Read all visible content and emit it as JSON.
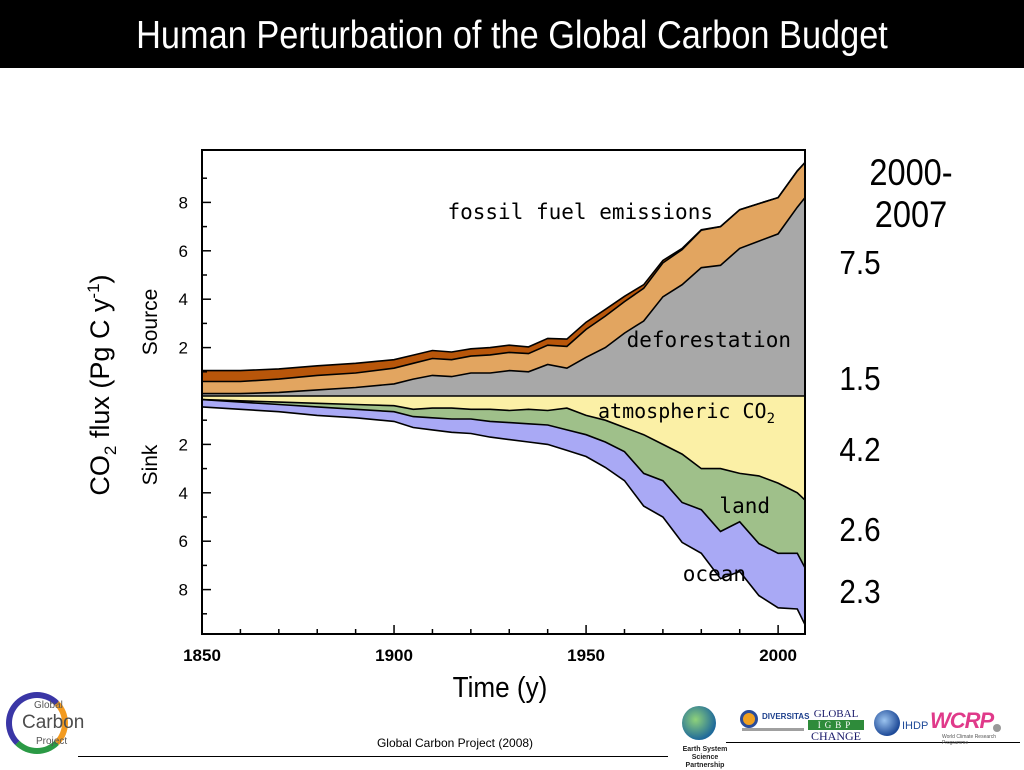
{
  "slide": {
    "title": "Human Perturbation of the Global Carbon Budget",
    "credit": "Global Carbon Project (2008)"
  },
  "chart_data": {
    "type": "area",
    "title": "",
    "xlabel": "Time (y)",
    "ylabel": "CO2 flux (Pg C y-1)",
    "ylabel_parts": {
      "pre": "CO",
      "sub": "2",
      "mid": " flux (Pg C y",
      "sup": "-1",
      "post": ")"
    },
    "source_label": "Source",
    "sink_label": "Sink",
    "xlim": [
      1850,
      2007
    ],
    "ylim": [
      -10,
      10
    ],
    "x_ticks": [
      "1850",
      "1900",
      "1950",
      "2000"
    ],
    "y_ticks_source": [
      "2",
      "4",
      "6",
      "8"
    ],
    "y_ticks_sink": [
      "2",
      "4",
      "6",
      "8"
    ],
    "years": [
      1850,
      1860,
      1870,
      1880,
      1890,
      1900,
      1905,
      1910,
      1915,
      1920,
      1925,
      1930,
      1935,
      1940,
      1945,
      1950,
      1955,
      1960,
      1965,
      1970,
      1975,
      1980,
      1985,
      1990,
      1995,
      2000,
      2005,
      2007
    ],
    "sources": [
      {
        "name": "fossil fuel emissions",
        "color": "#a8a8a8",
        "values": [
          0.1,
          0.1,
          0.15,
          0.25,
          0.35,
          0.5,
          0.7,
          0.85,
          0.8,
          0.95,
          0.95,
          1.05,
          1.0,
          1.3,
          1.15,
          1.6,
          2.0,
          2.6,
          3.1,
          4.1,
          4.6,
          5.3,
          5.4,
          6.1,
          6.4,
          6.7,
          7.8,
          8.2
        ]
      },
      {
        "name": "deforestation",
        "color": "#e2a560",
        "values": [
          0.5,
          0.5,
          0.55,
          0.6,
          0.6,
          0.65,
          0.65,
          0.7,
          0.7,
          0.7,
          0.75,
          0.75,
          0.75,
          0.8,
          0.9,
          1.15,
          1.3,
          1.3,
          1.35,
          1.4,
          1.45,
          1.55,
          1.6,
          1.6,
          1.55,
          1.5,
          1.5,
          1.45
        ]
      },
      {
        "name": "",
        "color": "#b8560a",
        "values": [
          0.45,
          0.45,
          0.42,
          0.4,
          0.4,
          0.35,
          0.34,
          0.33,
          0.32,
          0.3,
          0.3,
          0.3,
          0.28,
          0.28,
          0.3,
          0.3,
          0.28,
          0.22,
          0.15,
          0.1,
          0.05,
          0.02,
          0.0,
          0.0,
          0.0,
          0.0,
          0.0,
          0.0
        ]
      }
    ],
    "sinks": [
      {
        "name": "atmospheric CO2",
        "label_parts": {
          "pre": "atmospheric CO",
          "sub": "2"
        },
        "color": "#fbf0a6",
        "values": [
          0.15,
          0.2,
          0.25,
          0.3,
          0.35,
          0.4,
          0.55,
          0.5,
          0.5,
          0.55,
          0.55,
          0.6,
          0.55,
          0.6,
          0.5,
          0.8,
          1.0,
          1.3,
          1.6,
          2.0,
          2.4,
          3.0,
          3.0,
          3.2,
          3.3,
          3.6,
          4.0,
          4.3
        ]
      },
      {
        "name": "land",
        "color": "#9fc08a",
        "values": [
          0.0,
          0.05,
          0.1,
          0.15,
          0.2,
          0.25,
          0.3,
          0.4,
          0.45,
          0.4,
          0.5,
          0.5,
          0.6,
          0.6,
          0.9,
          0.8,
          0.9,
          1.0,
          1.6,
          1.5,
          2.0,
          1.7,
          2.6,
          2.0,
          2.8,
          2.9,
          2.5,
          2.8
        ]
      },
      {
        "name": "ocean",
        "color": "#a9a9f5",
        "values": [
          0.3,
          0.3,
          0.3,
          0.35,
          0.35,
          0.4,
          0.45,
          0.5,
          0.55,
          0.6,
          0.65,
          0.7,
          0.75,
          0.8,
          0.85,
          0.9,
          1.05,
          1.2,
          1.35,
          1.5,
          1.65,
          1.8,
          1.95,
          2.05,
          2.15,
          2.25,
          2.3,
          2.35
        ]
      }
    ],
    "period": {
      "label": "2000-2007",
      "values": [
        "7.5",
        "1.5",
        "4.2",
        "2.6",
        "2.3"
      ]
    }
  }
}
